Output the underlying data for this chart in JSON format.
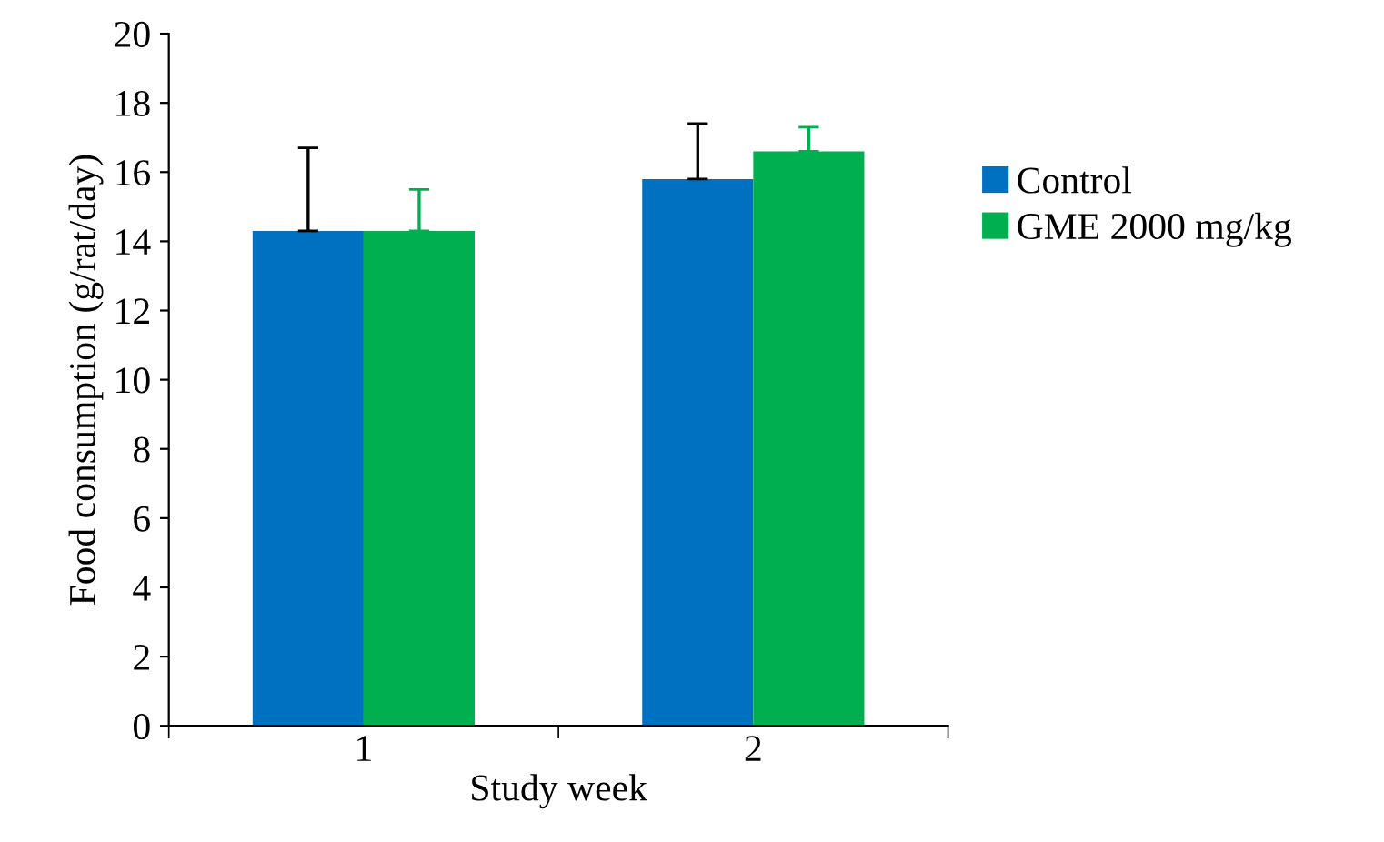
{
  "chart_data": {
    "type": "bar",
    "xlabel": "Study week",
    "ylabel": "Food consumption (g/rat/day)",
    "categories": [
      "1",
      "2"
    ],
    "series": [
      {
        "name": "Control",
        "color": "#0070c0",
        "values": [
          14.3,
          15.8
        ],
        "errors": [
          [
            14.3,
            16.7
          ],
          [
            15.8,
            17.4
          ]
        ]
      },
      {
        "name": "GME 2000 mg/kg",
        "color": "#00b050",
        "values": [
          14.3,
          16.6
        ],
        "errors": [
          [
            14.3,
            15.5
          ],
          [
            16.6,
            17.3
          ]
        ]
      }
    ],
    "ylim": [
      0,
      20
    ],
    "yticks": [
      0,
      2,
      4,
      6,
      8,
      10,
      12,
      14,
      16,
      18,
      20
    ],
    "grid": false,
    "legend": "right"
  }
}
